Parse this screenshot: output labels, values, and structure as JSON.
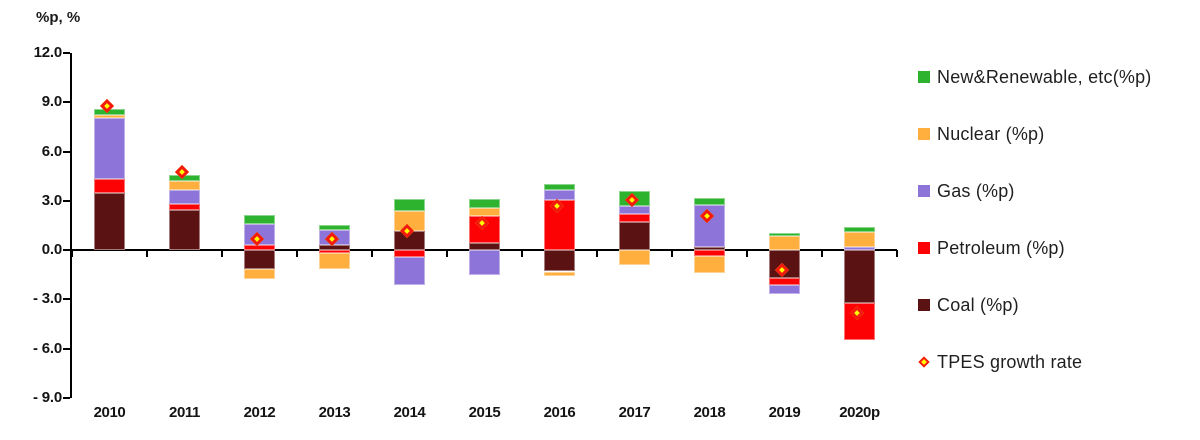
{
  "title": "%p, %",
  "chart_data": {
    "type": "bar",
    "subtype": "stacked-bars-with-diamond-marker-overlay",
    "title": "",
    "y_axis_unit_label": "%p, %",
    "categories": [
      "2010",
      "2011",
      "2012",
      "2013",
      "2014",
      "2015",
      "2016",
      "2017",
      "2018",
      "2019",
      "2020p"
    ],
    "stack_order_bottom_to_top": [
      "Coal (%p)",
      "Petroleum (%p)",
      "Gas (%p)",
      "Nuclear (%p)",
      "New&Renewable, etc(%p)"
    ],
    "series": [
      {
        "name": "Coal (%p)",
        "color": "#5A1212",
        "values": [
          3.5,
          2.45,
          -1.15,
          0.3,
          1.15,
          0.45,
          -1.3,
          1.7,
          0.2,
          -1.7,
          -3.2
        ]
      },
      {
        "name": "Petroleum (%p)",
        "color": "#FC0204",
        "values": [
          0.85,
          0.35,
          0.3,
          -0.2,
          -0.4,
          1.6,
          3.05,
          0.5,
          -0.35,
          -0.4,
          -2.3
        ]
      },
      {
        "name": "Gas (%p)",
        "color": "#8D74D8",
        "values": [
          3.7,
          0.85,
          1.3,
          0.9,
          -1.7,
          -1.5,
          0.6,
          0.5,
          2.55,
          -0.6,
          0.2
        ]
      },
      {
        "name": "Nuclear (%p)",
        "color": "#FFAF3E",
        "values": [
          0.15,
          0.55,
          -0.6,
          -0.95,
          1.25,
          0.5,
          -0.3,
          -0.9,
          -1.05,
          0.85,
          0.9
        ]
      },
      {
        "name": "New&Renewable, etc(%p)",
        "color": "#2EB32E",
        "values": [
          0.4,
          0.4,
          0.55,
          0.35,
          0.7,
          0.55,
          0.35,
          0.9,
          0.4,
          0.2,
          0.3
        ]
      }
    ],
    "marker_series": {
      "name": "TPES growth rate",
      "marker": "diamond",
      "fill": "#FFFF00",
      "stroke": "#F21A0E",
      "values": [
        8.6,
        4.6,
        0.5,
        0.5,
        1.0,
        1.5,
        2.5,
        2.9,
        1.9,
        -1.4,
        -4.0
      ]
    },
    "y_axis": {
      "min": -9.0,
      "max": 12.0,
      "tick_step": 3.0,
      "tick_values": [
        12.0,
        9.0,
        6.0,
        3.0,
        0.0,
        -3.0,
        -6.0,
        -9.0
      ],
      "tick_labels": [
        "12.0",
        "9.0",
        "6.0",
        "3.0",
        "0.0",
        "- 3.0",
        "- 6.0",
        "- 9.0"
      ]
    },
    "grid": "off",
    "legend_position": "right",
    "legend": [
      {
        "label": "New&Renewable, etc(%p)",
        "swatch": "square",
        "color": "#2EB32E"
      },
      {
        "label": "Nuclear (%p)",
        "swatch": "square",
        "color": "#FFAF3E"
      },
      {
        "label": "Gas (%p)",
        "swatch": "square",
        "color": "#8D74D8"
      },
      {
        "label": "Petroleum (%p)",
        "swatch": "square",
        "color": "#FC0204"
      },
      {
        "label": "Coal (%p)",
        "swatch": "square",
        "color": "#5A1212"
      },
      {
        "label": "TPES growth rate",
        "swatch": "diamond",
        "color": "#FFFF00",
        "stroke": "#F21A0E"
      }
    ]
  }
}
